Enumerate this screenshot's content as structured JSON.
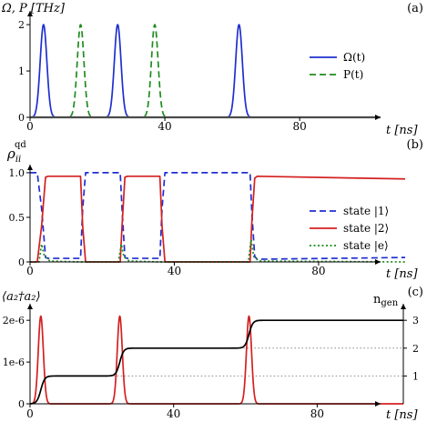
{
  "chart_data": [
    {
      "panel_label": "(a)",
      "type": "line",
      "ylabel": "Ω, P [THz]",
      "xlabel": "t [ns]",
      "xlim": [
        0,
        104
      ],
      "ylim": [
        0,
        2.1
      ],
      "x_ticks": [
        "0",
        "40",
        "80"
      ],
      "x_tick_values": [
        0,
        40,
        80
      ],
      "y_ticks": [
        "0",
        "1",
        "2"
      ],
      "y_tick_values": [
        0,
        1,
        2
      ],
      "legend_position": "right",
      "series": [
        {
          "name": "Ω(t)",
          "color": "#1f2fcf",
          "style": "solid",
          "pulses": [
            {
              "center": 4,
              "height": 2.0,
              "width": 1.4
            },
            {
              "center": 26,
              "height": 2.0,
              "width": 1.4
            },
            {
              "center": 62,
              "height": 2.0,
              "width": 1.4
            }
          ]
        },
        {
          "name": "P(t)",
          "color": "#1e8c1e",
          "style": "dashed",
          "pulses": [
            {
              "center": 15,
              "height": 2.0,
              "width": 1.4
            },
            {
              "center": 37,
              "height": 2.0,
              "width": 1.4
            }
          ]
        },
        {
          "name": "",
          "color": "#999999",
          "style": "solid",
          "pulses": []
        }
      ]
    },
    {
      "panel_label": "(b)",
      "type": "line",
      "ylabel": "ρ",
      "ylabel_sub": "ii",
      "ylabel_sup": "qd",
      "xlabel": "t [ns]",
      "xlim": [
        0,
        104
      ],
      "ylim": [
        0,
        1.05
      ],
      "x_ticks": [
        "0",
        "40",
        "80"
      ],
      "x_tick_values": [
        0,
        40,
        80
      ],
      "y_ticks": [
        "0",
        "0.5",
        "1.0"
      ],
      "y_tick_values": [
        0,
        0.5,
        1.0
      ],
      "legend_position": "right",
      "series": [
        {
          "name": "state |1⟩",
          "color": "#1f2fcf",
          "style": "dashed",
          "x": [
            0,
            2,
            3.2,
            4.3,
            5,
            14,
            14.6,
            15.4,
            16,
            25,
            25.5,
            26.3,
            27,
            36,
            36.6,
            37.4,
            38,
            61,
            61.5,
            62.3,
            63,
            104
          ],
          "y": [
            1.0,
            1.0,
            0.6,
            0.05,
            0.04,
            0.04,
            0.6,
            1.0,
            1.0,
            1.0,
            0.6,
            0.05,
            0.04,
            0.04,
            0.6,
            1.0,
            1.0,
            1.0,
            0.55,
            0.06,
            0.03,
            0.05
          ]
        },
        {
          "name": "state |2⟩",
          "color": "#d42020",
          "style": "solid",
          "x": [
            0,
            2,
            3.2,
            4.3,
            5,
            14,
            14.6,
            15.4,
            16,
            25,
            25.5,
            26.3,
            27,
            36,
            36.6,
            37.4,
            38,
            61,
            61.5,
            62.3,
            63,
            104
          ],
          "y": [
            0.0,
            0.0,
            0.4,
            0.95,
            0.96,
            0.96,
            0.4,
            0.0,
            0.0,
            0.0,
            0.4,
            0.95,
            0.96,
            0.96,
            0.4,
            0.0,
            0.0,
            0.0,
            0.45,
            0.94,
            0.96,
            0.93
          ]
        },
        {
          "name": "state |e⟩",
          "color": "#1e8c1e",
          "style": "dotted",
          "x": [
            0,
            2.5,
            3.2,
            4,
            5.5,
            14,
            24.5,
            25.3,
            26,
            27.5,
            36,
            60.5,
            61.3,
            62,
            63.5,
            104
          ],
          "y": [
            0,
            0,
            0.2,
            0.06,
            0.01,
            0.0,
            0,
            0.2,
            0.06,
            0.01,
            0.0,
            0,
            0.25,
            0.06,
            0.01,
            0.0
          ]
        }
      ]
    },
    {
      "panel_label": "(c)",
      "type": "line",
      "ylabel": "⟨a₂†a₂⟩",
      "ylabel_color": "#d42020",
      "ylabel_right": "n",
      "ylabel_right_sub": "gen",
      "xlabel": "t [ns]",
      "xlim": [
        0,
        104
      ],
      "ylim": [
        0,
        2.2e-06
      ],
      "ylim_right": [
        0,
        3.3
      ],
      "x_ticks": [
        "0",
        "40",
        "80"
      ],
      "x_tick_values": [
        0,
        40,
        80
      ],
      "y_ticks": [
        "0",
        "1e-6",
        "2e-6"
      ],
      "y_tick_values": [
        0,
        1e-06,
        2e-06
      ],
      "y_ticks_right": [
        "1",
        "2",
        "3"
      ],
      "y_tick_values_right": [
        1,
        2,
        3
      ],
      "series": [
        {
          "name": "",
          "color": "#d42020",
          "style": "solid",
          "axis": "left",
          "pulses": [
            {
              "center": 3,
              "height": 2.1e-06,
              "width": 1.0
            },
            {
              "center": 25,
              "height": 2.1e-06,
              "width": 1.0
            },
            {
              "center": 61,
              "height": 2.1e-06,
              "width": 1.0
            }
          ]
        },
        {
          "name": "",
          "color": "#000000",
          "style": "solid",
          "axis": "right",
          "steps": [
            {
              "center": 3,
              "width": 1.2
            },
            {
              "center": 25,
              "width": 1.2
            },
            {
              "center": 61,
              "width": 1.2
            }
          ]
        }
      ],
      "reference_levels": [
        1,
        2,
        3
      ]
    }
  ]
}
